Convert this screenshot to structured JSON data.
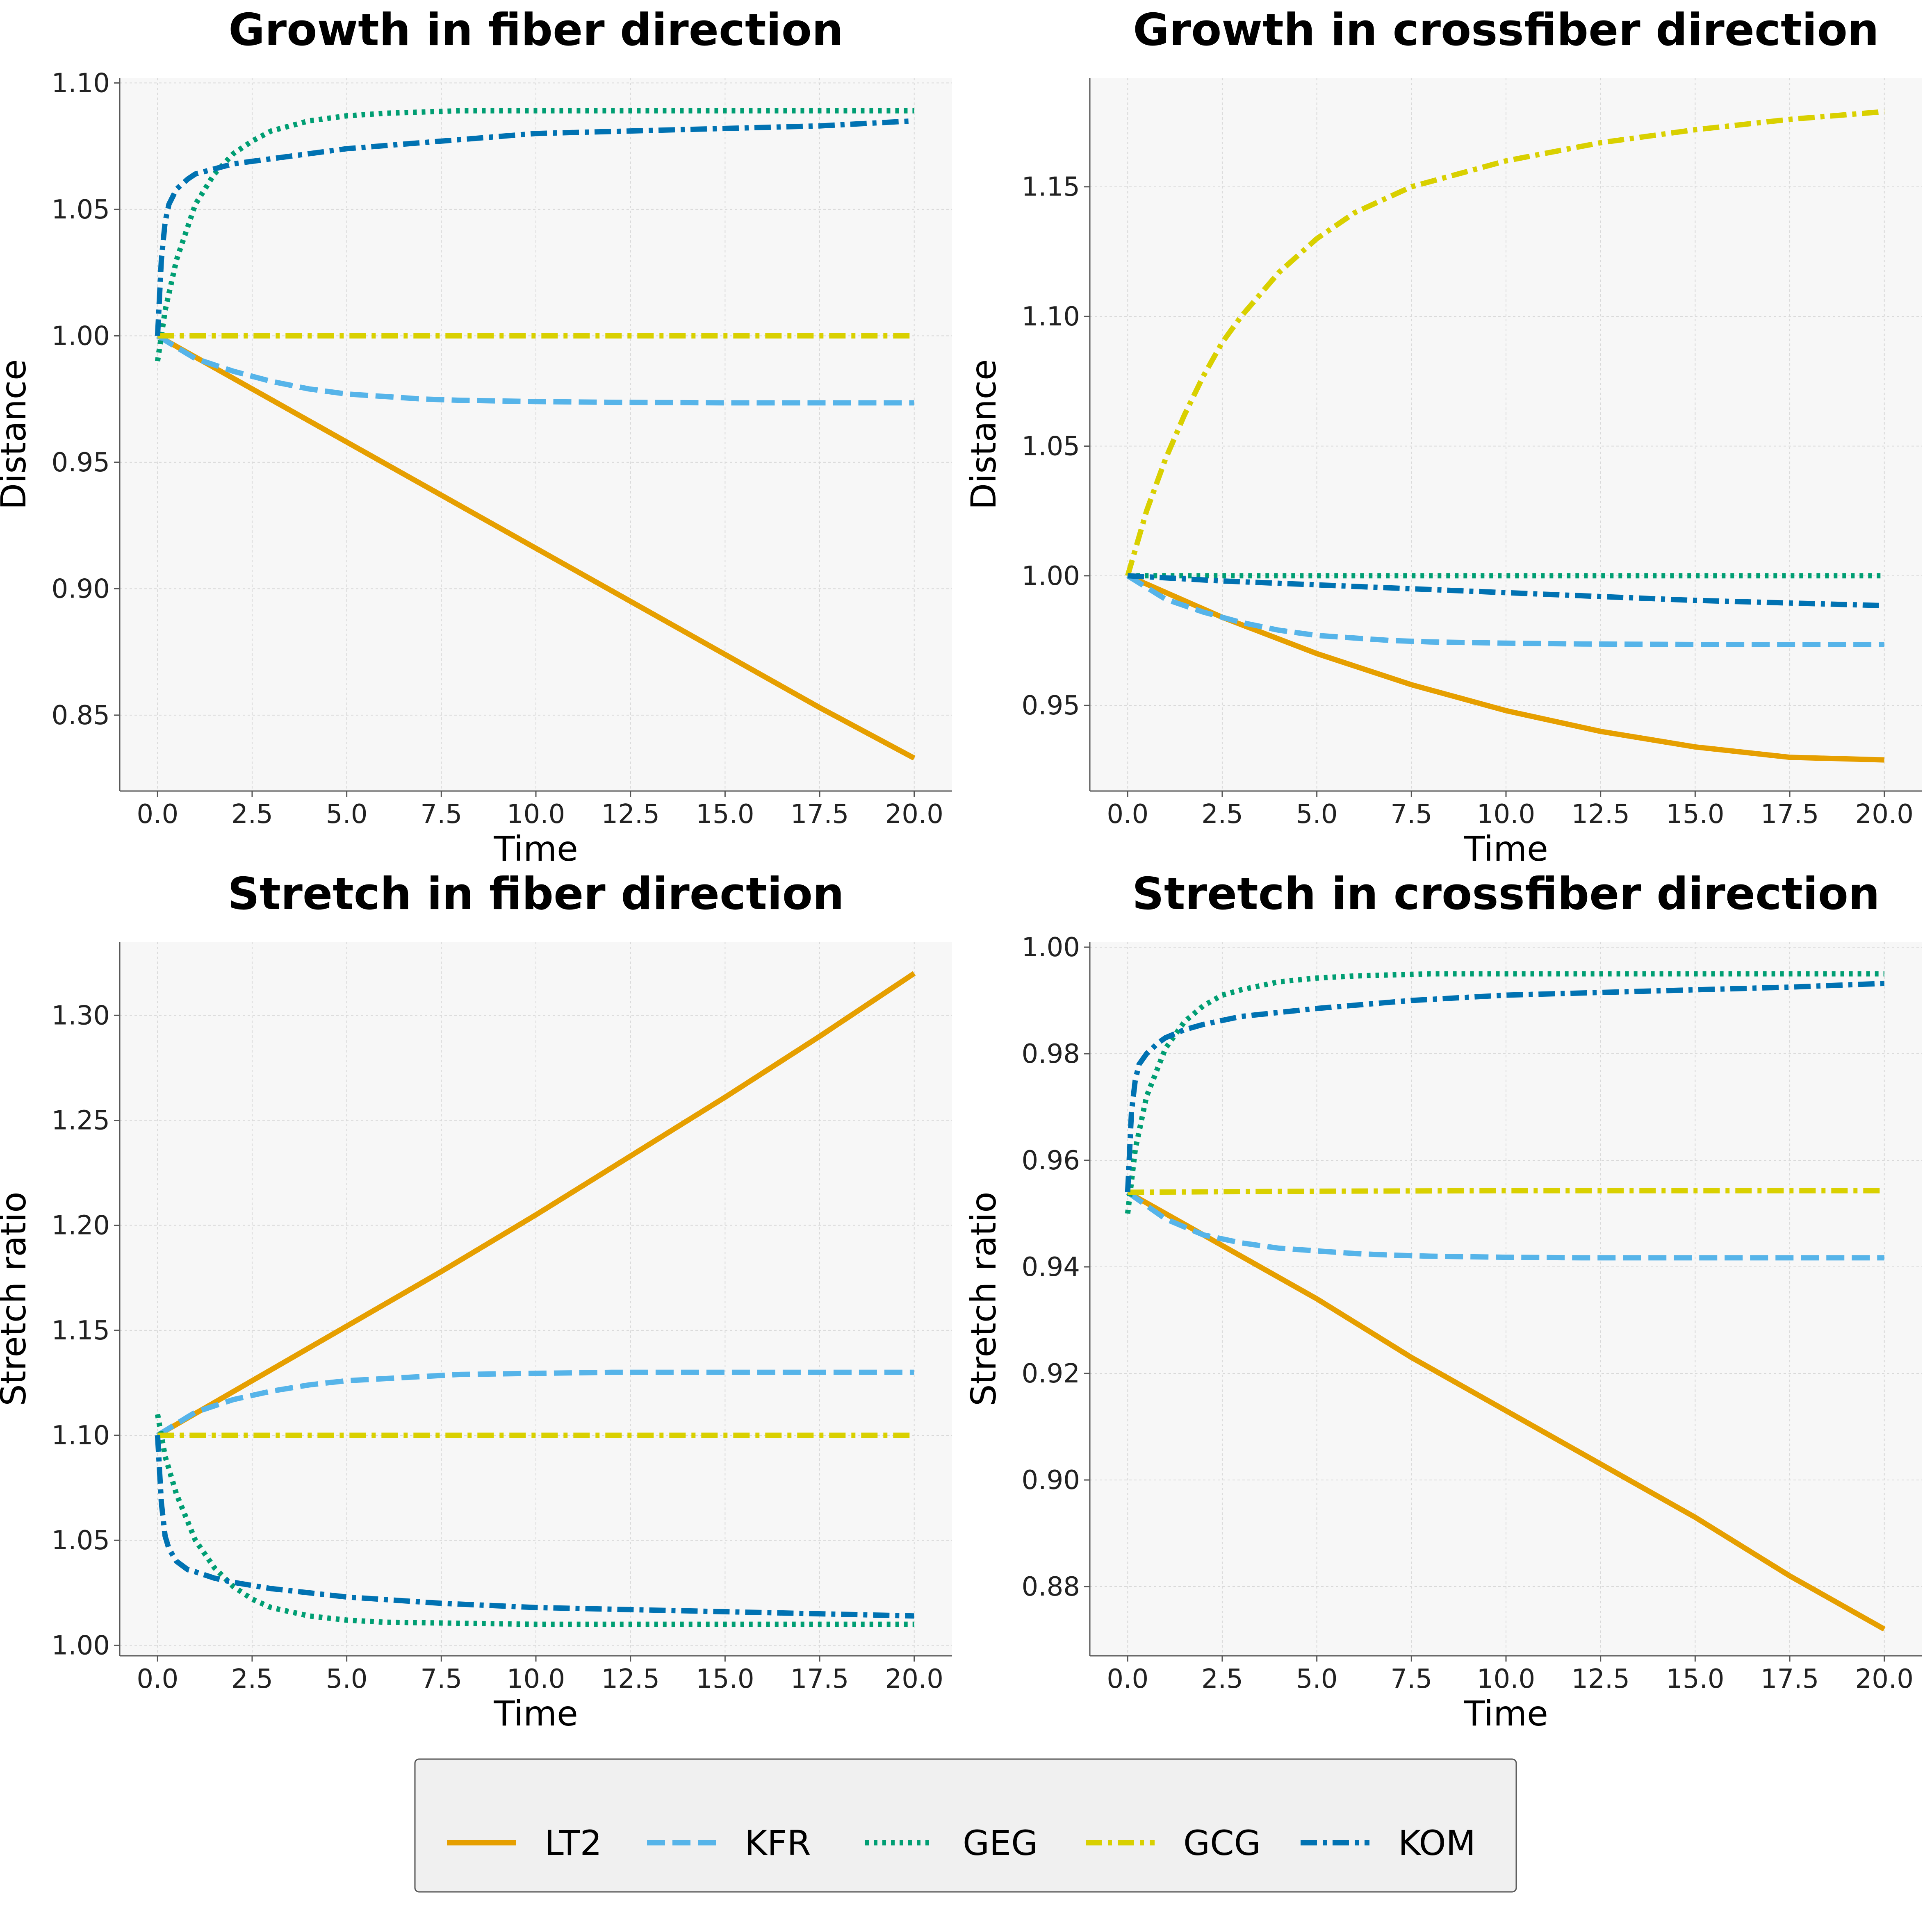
{
  "legend": [
    {
      "name": "LT2",
      "color": "#E69F00",
      "dash": "solid"
    },
    {
      "name": "KFR",
      "color": "#56B4E9",
      "dash": "dashed"
    },
    {
      "name": "GEG",
      "color": "#009E73",
      "dash": "dotted"
    },
    {
      "name": "GCG",
      "color": "#D9D000",
      "dash": "dashdot"
    },
    {
      "name": "KOM",
      "color": "#0072B2",
      "dash": "dashdot"
    }
  ],
  "chart_data": [
    {
      "type": "line",
      "title": "Growth in fiber direction",
      "xlabel": "Time",
      "ylabel": "Distance",
      "xlim": [
        -1.0,
        21.0
      ],
      "ylim": [
        0.82,
        1.102
      ],
      "xticks": [
        0.0,
        2.5,
        5.0,
        7.5,
        10.0,
        12.5,
        15.0,
        17.5,
        20.0
      ],
      "xtick_labels": [
        "0.0",
        "2.5",
        "5.0",
        "7.5",
        "10.0",
        "12.5",
        "15.0",
        "17.5",
        "20.0"
      ],
      "yticks": [
        0.85,
        0.9,
        0.95,
        1.0,
        1.05,
        1.1
      ],
      "ytick_labels": [
        "0.85",
        "0.90",
        "0.95",
        "1.00",
        "1.05",
        "1.10"
      ],
      "grid": true,
      "series": [
        {
          "name": "LT2",
          "x": [
            0,
            2.5,
            5,
            7.5,
            10,
            12.5,
            15,
            17.5,
            20
          ],
          "values": [
            1.0,
            0.979,
            0.958,
            0.937,
            0.916,
            0.895,
            0.874,
            0.853,
            0.833
          ]
        },
        {
          "name": "KFR",
          "x": [
            0,
            1,
            2,
            3,
            4,
            5,
            6,
            7,
            8,
            10,
            12,
            15,
            20
          ],
          "values": [
            1.0,
            0.991,
            0.986,
            0.982,
            0.979,
            0.977,
            0.976,
            0.975,
            0.9745,
            0.974,
            0.9737,
            0.9735,
            0.9735
          ]
        },
        {
          "name": "GEG",
          "x": [
            0,
            0.2,
            0.5,
            1,
            1.5,
            2,
            2.5,
            3,
            4,
            5,
            6,
            8,
            10,
            15,
            20
          ],
          "values": [
            0.99,
            1.01,
            1.03,
            1.052,
            1.064,
            1.072,
            1.077,
            1.081,
            1.085,
            1.087,
            1.088,
            1.089,
            1.089,
            1.089,
            1.089
          ]
        },
        {
          "name": "GCG",
          "x": [
            0,
            5,
            10,
            15,
            20
          ],
          "values": [
            1.0,
            1.0,
            1.0,
            1.0,
            1.0
          ]
        },
        {
          "name": "KOM",
          "x": [
            0,
            0.1,
            0.2,
            0.3,
            0.5,
            0.8,
            1,
            1.5,
            2,
            3,
            5,
            7.5,
            10,
            12.5,
            15,
            17.5,
            20
          ],
          "values": [
            1.0,
            1.03,
            1.045,
            1.052,
            1.058,
            1.062,
            1.064,
            1.066,
            1.068,
            1.07,
            1.074,
            1.077,
            1.08,
            1.081,
            1.082,
            1.083,
            1.085
          ]
        }
      ]
    },
    {
      "type": "line",
      "title": "Growth in crossfiber direction",
      "xlabel": "Time",
      "ylabel": "Distance",
      "xlim": [
        -1.0,
        21.0
      ],
      "ylim": [
        0.917,
        1.192
      ],
      "xticks": [
        0.0,
        2.5,
        5.0,
        7.5,
        10.0,
        12.5,
        15.0,
        17.5,
        20.0
      ],
      "xtick_labels": [
        "0.0",
        "2.5",
        "5.0",
        "7.5",
        "10.0",
        "12.5",
        "15.0",
        "17.5",
        "20.0"
      ],
      "yticks": [
        0.95,
        1.0,
        1.05,
        1.1,
        1.15
      ],
      "ytick_labels": [
        "0.95",
        "1.00",
        "1.05",
        "1.10",
        "1.15"
      ],
      "grid": true,
      "series": [
        {
          "name": "LT2",
          "x": [
            0,
            2.5,
            5,
            7.5,
            10,
            12.5,
            15,
            17.5,
            20
          ],
          "values": [
            1.0,
            0.984,
            0.97,
            0.958,
            0.948,
            0.94,
            0.934,
            0.93,
            0.929
          ]
        },
        {
          "name": "KFR",
          "x": [
            0,
            1,
            2,
            3,
            4,
            5,
            6,
            7,
            8,
            10,
            12,
            15,
            20
          ],
          "values": [
            1.0,
            0.991,
            0.986,
            0.982,
            0.979,
            0.977,
            0.976,
            0.975,
            0.9745,
            0.974,
            0.9737,
            0.9735,
            0.9735
          ]
        },
        {
          "name": "GEG",
          "x": [
            0,
            5,
            10,
            15,
            20
          ],
          "values": [
            1.0,
            1.0,
            1.0,
            1.0,
            1.0
          ]
        },
        {
          "name": "GCG",
          "x": [
            0,
            0.5,
            1,
            1.5,
            2,
            2.5,
            3,
            4,
            5,
            6,
            7.5,
            10,
            12.5,
            15,
            17.5,
            20
          ],
          "values": [
            1.0,
            1.025,
            1.045,
            1.062,
            1.077,
            1.09,
            1.1,
            1.117,
            1.13,
            1.14,
            1.15,
            1.16,
            1.167,
            1.172,
            1.176,
            1.179
          ]
        },
        {
          "name": "KOM",
          "x": [
            0,
            2.5,
            5,
            7.5,
            10,
            12.5,
            15,
            17.5,
            20
          ],
          "values": [
            1.0,
            0.998,
            0.9965,
            0.995,
            0.9935,
            0.992,
            0.9905,
            0.9895,
            0.9885
          ]
        }
      ]
    },
    {
      "type": "line",
      "title": "Stretch in fiber direction",
      "xlabel": "Time",
      "ylabel": "Stretch ratio",
      "xlim": [
        -1.0,
        21.0
      ],
      "ylim": [
        0.995,
        1.335
      ],
      "xticks": [
        0.0,
        2.5,
        5.0,
        7.5,
        10.0,
        12.5,
        15.0,
        17.5,
        20.0
      ],
      "xtick_labels": [
        "0.0",
        "2.5",
        "5.0",
        "7.5",
        "10.0",
        "12.5",
        "15.0",
        "17.5",
        "20.0"
      ],
      "yticks": [
        1.0,
        1.05,
        1.1,
        1.15,
        1.2,
        1.25,
        1.3
      ],
      "ytick_labels": [
        "1.00",
        "1.05",
        "1.10",
        "1.15",
        "1.20",
        "1.25",
        "1.30"
      ],
      "grid": true,
      "series": [
        {
          "name": "LT2",
          "x": [
            0,
            2.5,
            5,
            7.5,
            10,
            12.5,
            15,
            17.5,
            20
          ],
          "values": [
            1.1,
            1.126,
            1.152,
            1.178,
            1.205,
            1.233,
            1.261,
            1.29,
            1.32
          ]
        },
        {
          "name": "KFR",
          "x": [
            0,
            1,
            2,
            3,
            4,
            5,
            6,
            7,
            8,
            10,
            12,
            15,
            20
          ],
          "values": [
            1.1,
            1.111,
            1.117,
            1.121,
            1.124,
            1.126,
            1.127,
            1.128,
            1.129,
            1.1295,
            1.13,
            1.13,
            1.13
          ]
        },
        {
          "name": "GEG",
          "x": [
            0,
            0.2,
            0.5,
            1,
            1.5,
            2,
            2.5,
            3,
            4,
            5,
            6,
            8,
            10,
            15,
            20
          ],
          "values": [
            1.11,
            1.09,
            1.072,
            1.05,
            1.037,
            1.028,
            1.022,
            1.018,
            1.014,
            1.012,
            1.011,
            1.0105,
            1.01,
            1.01,
            1.01
          ]
        },
        {
          "name": "GCG",
          "x": [
            0,
            5,
            10,
            15,
            20
          ],
          "values": [
            1.1,
            1.1,
            1.1,
            1.1,
            1.1
          ]
        },
        {
          "name": "KOM",
          "x": [
            0,
            0.1,
            0.2,
            0.3,
            0.5,
            0.8,
            1,
            1.5,
            2,
            3,
            5,
            7.5,
            10,
            12.5,
            15,
            17.5,
            20
          ],
          "values": [
            1.1,
            1.068,
            1.052,
            1.046,
            1.04,
            1.036,
            1.035,
            1.032,
            1.03,
            1.027,
            1.023,
            1.02,
            1.018,
            1.017,
            1.016,
            1.015,
            1.014
          ]
        }
      ]
    },
    {
      "type": "line",
      "title": "Stretch in crossfiber direction",
      "xlabel": "Time",
      "ylabel": "Stretch ratio",
      "xlim": [
        -1.0,
        21.0
      ],
      "ylim": [
        0.867,
        1.001
      ],
      "xticks": [
        0.0,
        2.5,
        5.0,
        7.5,
        10.0,
        12.5,
        15.0,
        17.5,
        20.0
      ],
      "xtick_labels": [
        "0.0",
        "2.5",
        "5.0",
        "7.5",
        "10.0",
        "12.5",
        "15.0",
        "17.5",
        "20.0"
      ],
      "yticks": [
        0.88,
        0.9,
        0.92,
        0.94,
        0.96,
        0.98,
        1.0
      ],
      "ytick_labels": [
        "0.88",
        "0.90",
        "0.92",
        "0.94",
        "0.96",
        "0.98",
        "1.00"
      ],
      "grid": true,
      "series": [
        {
          "name": "LT2",
          "x": [
            0,
            2.5,
            5,
            7.5,
            10,
            12.5,
            15,
            17.5,
            20
          ],
          "values": [
            0.954,
            0.944,
            0.934,
            0.923,
            0.913,
            0.903,
            0.893,
            0.882,
            0.872
          ]
        },
        {
          "name": "KFR",
          "x": [
            0,
            1,
            2,
            3,
            4,
            5,
            6,
            7,
            8,
            10,
            12,
            15,
            20
          ],
          "values": [
            0.954,
            0.949,
            0.946,
            0.9445,
            0.9435,
            0.943,
            0.9425,
            0.9422,
            0.942,
            0.9418,
            0.9417,
            0.9417,
            0.9417
          ]
        },
        {
          "name": "GEG",
          "x": [
            0,
            0.2,
            0.5,
            1,
            1.5,
            2,
            2.5,
            3,
            4,
            5,
            6,
            8,
            10,
            15,
            20
          ],
          "values": [
            0.95,
            0.962,
            0.972,
            0.981,
            0.986,
            0.989,
            0.991,
            0.992,
            0.9935,
            0.9942,
            0.9946,
            0.995,
            0.995,
            0.995,
            0.995
          ]
        },
        {
          "name": "GCG",
          "x": [
            0,
            5,
            10,
            15,
            20
          ],
          "values": [
            0.954,
            0.9542,
            0.9543,
            0.9543,
            0.9543
          ]
        },
        {
          "name": "KOM",
          "x": [
            0,
            0.1,
            0.2,
            0.3,
            0.5,
            0.8,
            1,
            1.5,
            2,
            3,
            5,
            7.5,
            10,
            12.5,
            15,
            17.5,
            20
          ],
          "values": [
            0.954,
            0.969,
            0.975,
            0.978,
            0.98,
            0.982,
            0.983,
            0.9845,
            0.9855,
            0.987,
            0.9885,
            0.99,
            0.991,
            0.9915,
            0.992,
            0.9925,
            0.9932
          ]
        }
      ]
    }
  ]
}
